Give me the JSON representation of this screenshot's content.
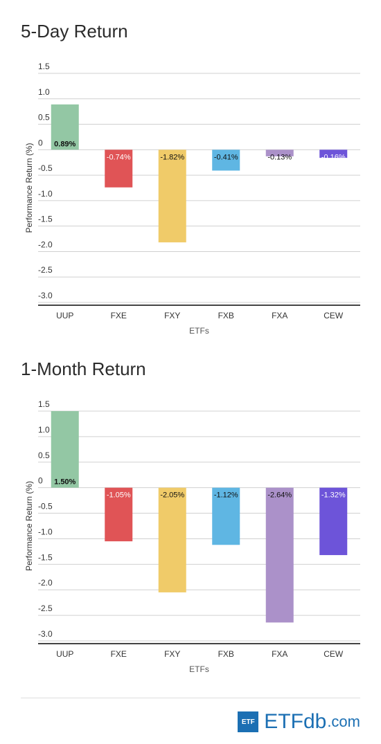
{
  "colors": {
    "UUP": "#93c7a4",
    "FXE": "#e05456",
    "FXY": "#f0cb69",
    "FXB": "#5fb6e3",
    "FXA": "#ab91c9",
    "CEW": "#6d54d9",
    "grid": "#d0d0d0",
    "axis": "#444444"
  },
  "chart_data": [
    {
      "type": "bar",
      "title": "5-Day Return",
      "xlabel": "ETFs",
      "ylabel": "Performance Return (%)",
      "categories": [
        "UUP",
        "FXE",
        "FXY",
        "FXB",
        "FXA",
        "CEW"
      ],
      "values": [
        0.89,
        -0.74,
        -1.82,
        -0.41,
        -0.13,
        -0.16
      ],
      "data_labels": [
        "0.89%",
        "-0.74%",
        "-1.82%",
        "-0.41%",
        "-0.13%",
        "-0.16%"
      ],
      "yticks": [
        "1.5",
        "1.0",
        "0.5",
        "0",
        "-0.5",
        "-1.0",
        "-1.5",
        "-2.0",
        "-2.5",
        "-3.0"
      ],
      "ylim": [
        -3.0,
        1.5
      ],
      "grid": true
    },
    {
      "type": "bar",
      "title": "1-Month Return",
      "xlabel": "ETFs",
      "ylabel": "Performance Return (%)",
      "categories": [
        "UUP",
        "FXE",
        "FXY",
        "FXB",
        "FXA",
        "CEW"
      ],
      "values": [
        1.5,
        -1.05,
        -2.05,
        -1.12,
        -2.64,
        -1.32
      ],
      "data_labels": [
        "1.50%",
        "-1.05%",
        "-2.05%",
        "-1.12%",
        "-2.64%",
        "-1.32%"
      ],
      "yticks": [
        "1.5",
        "1.0",
        "0.5",
        "0",
        "-0.5",
        "-1.0",
        "-1.5",
        "-2.0",
        "-2.5",
        "-3.0"
      ],
      "ylim": [
        -3.0,
        1.5
      ],
      "grid": true
    }
  ],
  "logo": {
    "badge": "ETF",
    "name_a": "ETF",
    "name_b": "db",
    "name_c": ".com"
  }
}
